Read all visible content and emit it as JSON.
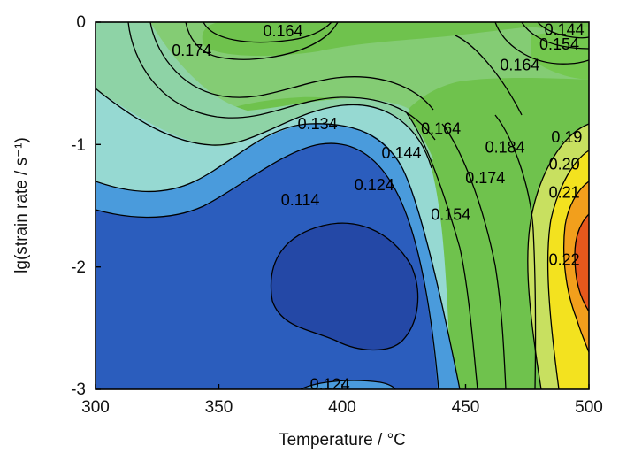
{
  "chart_data": {
    "type": "contour",
    "xlabel": "Temperature / °C",
    "ylabel": "lg(strain rate / s⁻¹)",
    "xlim": [
      300,
      500
    ],
    "ylim": [
      -3,
      0
    ],
    "x_ticks": [
      "300",
      "350",
      "400",
      "450",
      "500"
    ],
    "y_ticks": [
      "0",
      "-1",
      "-2",
      "-3"
    ],
    "contour_levels": [
      0.114,
      0.124,
      0.134,
      0.144,
      0.154,
      0.164,
      0.174,
      0.184,
      0.194,
      0.204,
      0.214,
      0.224
    ],
    "region_colors": [
      "#2448a6",
      "#2b5dbd",
      "#4a9bdc",
      "#96d9d2",
      "#8ed3a6",
      "#84cc74",
      "#6fc24d",
      "#6ac147",
      "#74c84f",
      "#c8e060",
      "#f3e21f",
      "#f29f1c",
      "#e6581c"
    ],
    "contour_labels": [
      {
        "text": "0.164",
        "x": 376,
        "y": -0.08
      },
      {
        "text": "0.174",
        "x": 339,
        "y": -0.24
      },
      {
        "text": "0.144",
        "x": 490,
        "y": -0.07
      },
      {
        "text": "0.154",
        "x": 488,
        "y": -0.19
      },
      {
        "text": "0.164",
        "x": 472,
        "y": -0.36
      },
      {
        "text": "0.134",
        "x": 390,
        "y": -0.84
      },
      {
        "text": "0.164",
        "x": 440,
        "y": -0.88
      },
      {
        "text": "0.144",
        "x": 424,
        "y": -1.08
      },
      {
        "text": "0.184",
        "x": 466,
        "y": -1.03
      },
      {
        "text": "0.19",
        "x": 491,
        "y": -0.95
      },
      {
        "text": "0.174",
        "x": 458,
        "y": -1.28
      },
      {
        "text": "0.20",
        "x": 490,
        "y": -1.17
      },
      {
        "text": "0.124",
        "x": 413,
        "y": -1.34
      },
      {
        "text": "0.114",
        "x": 383,
        "y": -1.46
      },
      {
        "text": "0.154",
        "x": 444,
        "y": -1.58
      },
      {
        "text": "0.21",
        "x": 490,
        "y": -1.4
      },
      {
        "text": "0.22",
        "x": 490,
        "y": -1.95
      },
      {
        "text": "0.124",
        "x": 395,
        "y": -2.97
      }
    ]
  }
}
